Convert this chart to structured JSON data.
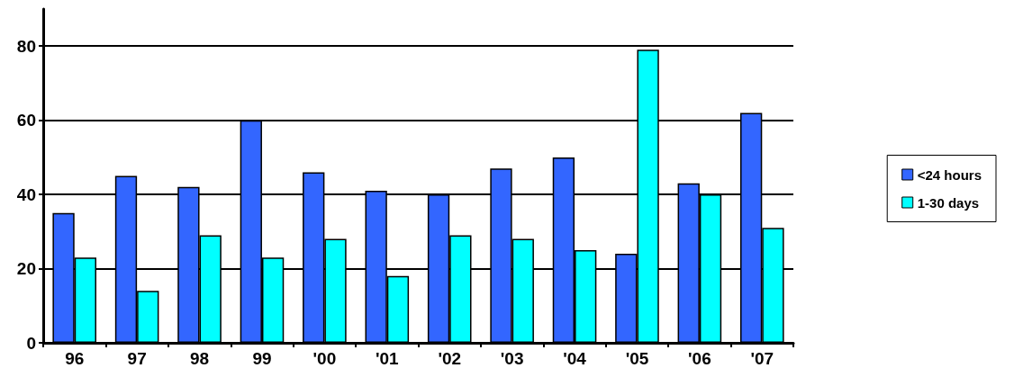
{
  "chart_data": {
    "type": "bar",
    "categories": [
      "96",
      "97",
      "98",
      "99",
      "'00",
      "'01",
      "'02",
      "'03",
      "'04",
      "'05",
      "'06",
      "'07"
    ],
    "series": [
      {
        "name": "<24 hours",
        "color": "#3366ff",
        "values": [
          35,
          45,
          42,
          60,
          46,
          41,
          40,
          47,
          50,
          24,
          43,
          62
        ]
      },
      {
        "name": "1-30 days",
        "color": "#00ffff",
        "values": [
          23,
          14,
          29,
          23,
          28,
          18,
          29,
          28,
          25,
          79,
          40,
          31
        ]
      }
    ],
    "ylim": [
      0,
      90
    ],
    "yticks": [
      0,
      20,
      40,
      60,
      80
    ],
    "grid": "y",
    "legend": "right"
  }
}
